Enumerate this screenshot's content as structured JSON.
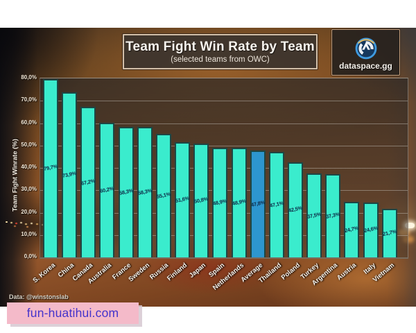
{
  "page": {
    "source_credit": "Data: @winstonslab",
    "watermark_text": "fun-huatihui.com",
    "brand": {
      "name": "dataspace.gg",
      "logo": "overwatch-logo"
    }
  },
  "chart_data": {
    "type": "bar",
    "title": "Team Fight Win Rate by Team",
    "subtitle": "(selected teams from OWC)",
    "xlabel": "",
    "ylabel": "Team Fight Winrate (%)",
    "ylim": [
      0,
      80
    ],
    "ytick_step": 10,
    "ytick_labels": [
      "80,0%",
      "70,0%",
      "60,0%",
      "50,0%",
      "40,0%",
      "30,0%",
      "20,0%",
      "10,0%",
      "0,0%"
    ],
    "grid": true,
    "legend": "none",
    "categories": [
      "S. Korea",
      "China",
      "Canada",
      "Australia",
      "France",
      "Sweden",
      "Russia",
      "Finland",
      "Japan",
      "Spain",
      "Netherlands",
      "Average",
      "Thailand",
      "Poland",
      "Turkey",
      "Argentina",
      "Austria",
      "Italy",
      "Vietnam"
    ],
    "values": [
      79.7,
      73.9,
      67.2,
      60.2,
      58.3,
      58.3,
      55.1,
      51.6,
      50.8,
      48.9,
      48.9,
      47.8,
      47.1,
      42.5,
      37.5,
      37.3,
      24.7,
      24.6,
      21.7
    ],
    "value_labels": [
      "79,7%",
      "73,9%",
      "67,2%",
      "60,2%",
      "58,3%",
      "58,3%",
      "55,1%",
      "51,6%",
      "50,8%",
      "48,9%",
      "48,9%",
      "47,8%",
      "47,1%",
      "42,5%",
      "37,5%",
      "37,3%",
      "24,7%",
      "24,6%",
      "21,7%"
    ],
    "highlight_category": "Average",
    "highlight_index": 11,
    "colors": {
      "bar": "#3aeccd",
      "bar_border": "#1d4745",
      "highlight_bar": "#2d96cf",
      "value_text": "#0d2946",
      "accent_border": "#d2bfa9",
      "watermark_bg": "#f4bac9",
      "watermark_text": "#4433cb"
    }
  }
}
